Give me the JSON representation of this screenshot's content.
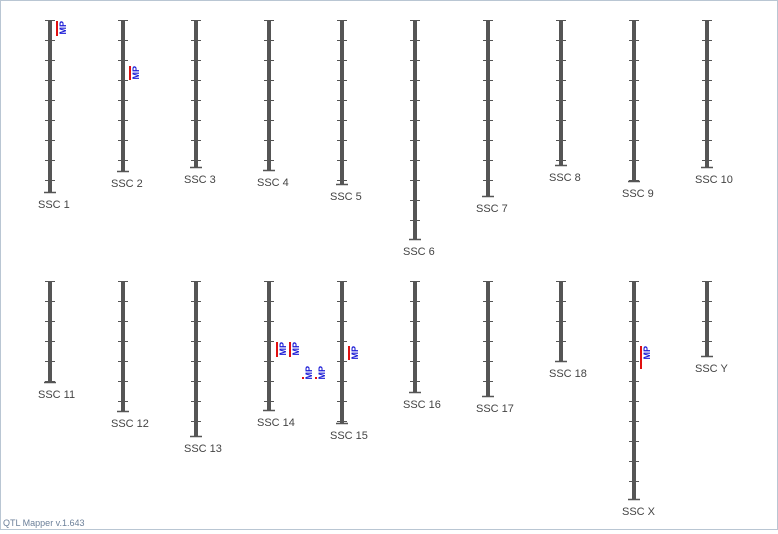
{
  "chromosomes": [
    {
      "label": "SSC 1",
      "qtls": [
        {
          "label": "MP"
        }
      ]
    },
    {
      "label": "SSC 2",
      "qtls": [
        {
          "label": "MP"
        }
      ]
    },
    {
      "label": "SSC 3",
      "qtls": []
    },
    {
      "label": "SSC 4",
      "qtls": []
    },
    {
      "label": "SSC 5",
      "qtls": []
    },
    {
      "label": "SSC 6",
      "qtls": []
    },
    {
      "label": "SSC 7",
      "qtls": []
    },
    {
      "label": "SSC 8",
      "qtls": []
    },
    {
      "label": "SSC 9",
      "qtls": []
    },
    {
      "label": "SSC 10",
      "qtls": []
    },
    {
      "label": "SSC 11",
      "qtls": []
    },
    {
      "label": "SSC 12",
      "qtls": []
    },
    {
      "label": "SSC 13",
      "qtls": []
    },
    {
      "label": "SSC 14",
      "qtls": [
        {
          "label": "MP"
        },
        {
          "label": "MP"
        },
        {
          "label": "MP"
        },
        {
          "label": "MP"
        }
      ]
    },
    {
      "label": "SSC 15",
      "qtls": [
        {
          "label": "MP"
        }
      ]
    },
    {
      "label": "SSC 16",
      "qtls": []
    },
    {
      "label": "SSC 17",
      "qtls": []
    },
    {
      "label": "SSC 18",
      "qtls": []
    },
    {
      "label": "SSC X",
      "qtls": [
        {
          "label": "MP"
        }
      ]
    },
    {
      "label": "SSC Y",
      "qtls": []
    }
  ],
  "footer": "QTL Mapper v.1.643"
}
